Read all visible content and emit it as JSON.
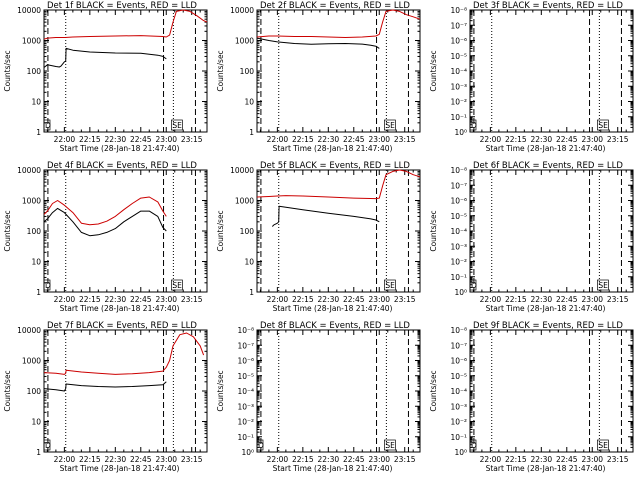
{
  "colors": {
    "events": "#000000",
    "lld": "#cc0000",
    "axis": "#000000",
    "background": "#ffffff"
  },
  "shared": {
    "xlabel": "Start Time (28-Jan-18 21:47:40)",
    "ylabel": "Counts/sec",
    "time_ticks": [
      "22:00",
      "22:15",
      "22:30",
      "22:45",
      "23:00",
      "23:15"
    ],
    "time_tick_minutes": [
      0,
      15,
      30,
      45,
      60,
      75
    ]
  },
  "markers": {
    "dashed_minutes": [
      -9.7,
      58.4,
      77.2
    ],
    "dotted_minutes": [
      0.8,
      64.2
    ],
    "box_labels": [
      "D",
      "SE"
    ]
  },
  "chart_data": [
    {
      "id": "det-1f",
      "type": "line",
      "title": "Det 1f BLACK = Events, RED = LLD",
      "y_scale": "log",
      "ylim": [
        1,
        10000
      ],
      "y_ticks": [
        "1",
        "10",
        "100",
        "1000",
        "10000"
      ],
      "x_range_minutes": [
        -12,
        84
      ],
      "box_left": "D",
      "box_right": "SE",
      "series": [
        {
          "color": "red",
          "x": [
            -12,
            -10,
            -5,
            0.5,
            5,
            15,
            30,
            45,
            58,
            60,
            62,
            64,
            66,
            70,
            74,
            78,
            82,
            84
          ],
          "y": [
            1100,
            1200,
            1250,
            1250,
            1300,
            1350,
            1400,
            1450,
            1350,
            1300,
            1500,
            4000,
            9000,
            10000,
            9000,
            6500,
            4500,
            4000
          ]
        },
        {
          "x": [
            -12,
            -10,
            -5,
            -3,
            -2,
            0,
            0.8,
            1,
            5,
            15,
            30,
            45,
            55,
            58,
            60
          ],
          "y": [
            130,
            160,
            140,
            135,
            145,
            200,
            210,
            550,
            480,
            420,
            390,
            380,
            330,
            300,
            250
          ]
        }
      ]
    },
    {
      "id": "det-2f",
      "type": "line",
      "title": "Det 2f BLACK = Events, RED = LLD",
      "y_scale": "log",
      "ylim": [
        1,
        10000
      ],
      "y_ticks": [
        "1",
        "10",
        "100",
        "1000",
        "10000"
      ],
      "x_range_minutes": [
        -12,
        84
      ],
      "box_left": "",
      "box_right": "SE",
      "series": [
        {
          "color": "red",
          "x": [
            -12,
            -5,
            0,
            10,
            20,
            30,
            40,
            50,
            58,
            60,
            62,
            64,
            68,
            72,
            76,
            80,
            84
          ],
          "y": [
            1300,
            1400,
            1400,
            1350,
            1350,
            1300,
            1250,
            1300,
            1400,
            1600,
            4000,
            9000,
            10000,
            9000,
            7000,
            6000,
            5000
          ]
        },
        {
          "x": [
            -12,
            -5,
            0,
            10,
            20,
            30,
            40,
            50,
            55,
            58,
            60
          ],
          "y": [
            1200,
            1000,
            900,
            800,
            750,
            780,
            800,
            760,
            700,
            650,
            550
          ]
        }
      ]
    },
    {
      "id": "det-3f",
      "type": "line",
      "title": "Det 3f BLACK = Events, RED = LLD",
      "y_scale": "log",
      "ylim": [
        1,
        1e-08
      ],
      "y_ticks": [
        "10⁰",
        "10⁻¹",
        "10⁻²",
        "10⁻³",
        "10⁻⁴",
        "10⁻⁵",
        "10⁻⁶",
        "10⁻⁷",
        "10⁻⁸"
      ],
      "x_range_minutes": [
        -12,
        84
      ],
      "box_left": "D",
      "box_right": "SE",
      "series": []
    },
    {
      "id": "det-4f",
      "type": "line",
      "title": "Det 4f BLACK = Events, RED = LLD",
      "y_scale": "log",
      "ylim": [
        1,
        10000
      ],
      "y_ticks": [
        "1",
        "10",
        "100",
        "1000",
        "10000"
      ],
      "x_range_minutes": [
        -12,
        84
      ],
      "box_left": "D",
      "box_right": "SE",
      "series": [
        {
          "color": "red",
          "x": [
            -12,
            -10,
            -7,
            -4,
            0,
            5,
            10,
            15,
            20,
            25,
            30,
            35,
            40,
            45,
            50,
            55,
            58,
            60
          ],
          "y": [
            350,
            450,
            800,
            1000,
            700,
            400,
            180,
            160,
            170,
            210,
            300,
            500,
            800,
            1200,
            1300,
            900,
            450,
            300
          ]
        },
        {
          "x": [
            -12,
            -10,
            -7,
            -4,
            0,
            5,
            10,
            15,
            20,
            25,
            30,
            35,
            40,
            45,
            50,
            55,
            58,
            60
          ],
          "y": [
            200,
            250,
            400,
            550,
            400,
            200,
            90,
            70,
            75,
            90,
            120,
            200,
            300,
            450,
            450,
            300,
            130,
            100
          ]
        }
      ]
    },
    {
      "id": "det-5f",
      "type": "line",
      "title": "Det 5f BLACK = Events, RED = LLD",
      "y_scale": "log",
      "ylim": [
        1,
        10000
      ],
      "y_ticks": [
        "1",
        "10",
        "100",
        "1000",
        "10000"
      ],
      "x_range_minutes": [
        -12,
        84
      ],
      "box_left": "",
      "box_right": "SE",
      "series": [
        {
          "color": "red",
          "x": [
            -12,
            -5,
            0,
            5,
            15,
            30,
            45,
            58,
            60,
            62,
            64,
            68,
            72,
            76,
            80,
            84
          ],
          "y": [
            1300,
            1350,
            1400,
            1450,
            1400,
            1300,
            1200,
            1150,
            1200,
            3000,
            7000,
            9000,
            10000,
            9000,
            7000,
            6000
          ]
        },
        {
          "x": [
            -3,
            -2,
            0,
            0.8,
            1,
            5,
            15,
            30,
            45,
            55,
            58,
            60
          ],
          "y": [
            140,
            160,
            180,
            200,
            650,
            600,
            500,
            380,
            300,
            250,
            230,
            200
          ]
        }
      ]
    },
    {
      "id": "det-6f",
      "type": "line",
      "title": "Det 6f BLACK = Events, RED = LLD",
      "y_scale": "log",
      "ylim": [
        1,
        1e-08
      ],
      "y_ticks": [
        "10⁰",
        "10⁻¹",
        "10⁻²",
        "10⁻³",
        "10⁻⁴",
        "10⁻⁵",
        "10⁻⁶",
        "10⁻⁷",
        "10⁻⁸"
      ],
      "x_range_minutes": [
        -12,
        84
      ],
      "box_left": "D",
      "box_right": "SE",
      "series": []
    },
    {
      "id": "det-7f",
      "type": "line",
      "title": "Det 7f BLACK = Events, RED = LLD",
      "y_scale": "log",
      "ylim": [
        1,
        10000
      ],
      "y_ticks": [
        "1",
        "10",
        "100",
        "1000",
        "10000"
      ],
      "x_range_minutes": [
        -12,
        84
      ],
      "box_left": "D",
      "box_right": "",
      "series": [
        {
          "color": "red",
          "x": [
            -12,
            -5,
            0,
            0.8,
            1,
            10,
            20,
            30,
            40,
            50,
            58,
            60,
            62,
            64,
            68,
            72,
            76,
            80,
            82
          ],
          "y": [
            400,
            380,
            350,
            380,
            480,
            420,
            380,
            350,
            370,
            400,
            450,
            600,
            1000,
            3000,
            7000,
            8000,
            6000,
            3000,
            1500
          ]
        },
        {
          "x": [
            -12,
            -5,
            0,
            0.8,
            1,
            10,
            20,
            30,
            40,
            50,
            58,
            60
          ],
          "y": [
            120,
            110,
            100,
            120,
            170,
            150,
            140,
            135,
            140,
            150,
            160,
            200
          ]
        }
      ]
    },
    {
      "id": "det-8f",
      "type": "line",
      "title": "Det 8f BLACK = Events, RED = LLD",
      "y_scale": "log",
      "ylim": [
        1,
        1e-08
      ],
      "y_ticks": [
        "10⁰",
        "10⁻¹",
        "10⁻²",
        "10⁻³",
        "10⁻⁴",
        "10⁻⁵",
        "10⁻⁶",
        "10⁻⁷",
        "10⁻⁸"
      ],
      "x_range_minutes": [
        -12,
        84
      ],
      "box_left": "D",
      "box_right": "SE",
      "series": []
    },
    {
      "id": "det-9f",
      "type": "line",
      "title": "Det 9f BLACK = Events, RED = LLD",
      "y_scale": "log",
      "ylim": [
        1,
        1e-08
      ],
      "y_ticks": [
        "10⁰",
        "10⁻¹",
        "10⁻²",
        "10⁻³",
        "10⁻⁴",
        "10⁻⁵",
        "10⁻⁶",
        "10⁻⁷",
        "10⁻⁸"
      ],
      "x_range_minutes": [
        -12,
        84
      ],
      "box_left": "D",
      "box_right": "SE",
      "series": []
    }
  ]
}
